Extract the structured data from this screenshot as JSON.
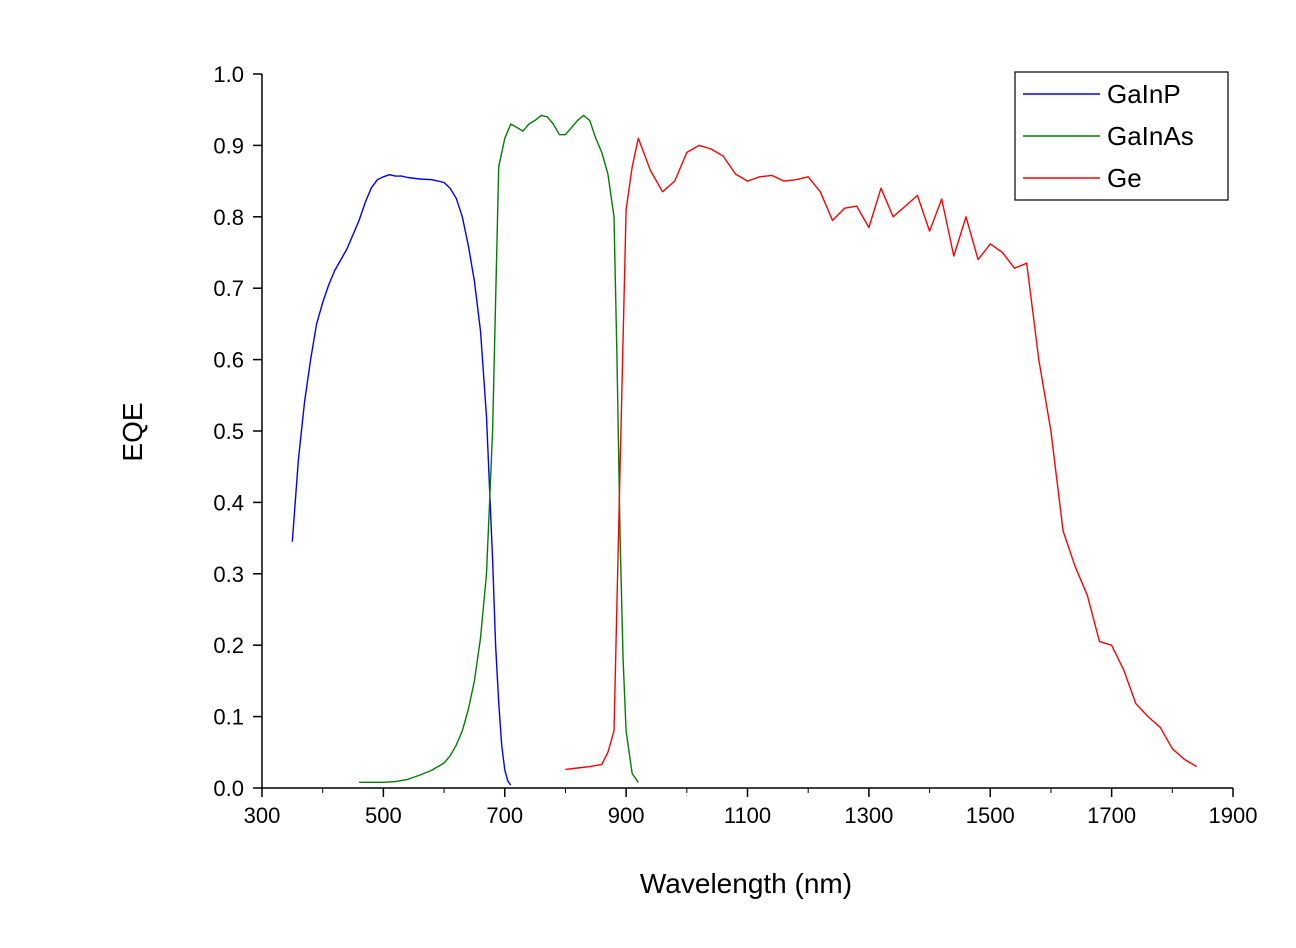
{
  "chart_data": {
    "type": "line",
    "title": "",
    "xlabel": "Wavelength (nm)",
    "ylabel": "EQE",
    "xlim": [
      300,
      1900
    ],
    "ylim": [
      0.0,
      1.0
    ],
    "xticks": [
      300,
      500,
      700,
      900,
      1100,
      1300,
      1500,
      1700,
      1900
    ],
    "xtick_labels": [
      "300",
      "500",
      "700",
      "900",
      "1100",
      "1300",
      "1500",
      "1700",
      "1900"
    ],
    "yticks": [
      0.0,
      0.1,
      0.2,
      0.3,
      0.4,
      0.5,
      0.6,
      0.7,
      0.8,
      0.9,
      1.0
    ],
    "ytick_labels": [
      "0.0",
      "0.1",
      "0.2",
      "0.3",
      "0.4",
      "0.5",
      "0.6",
      "0.7",
      "0.8",
      "0.9",
      "1.0"
    ],
    "grid": false,
    "legend_position": "top-right",
    "series": [
      {
        "name": "GaInP",
        "color": "#0000ff",
        "x": [
          350,
          360,
          370,
          380,
          390,
          400,
          410,
          420,
          430,
          440,
          450,
          460,
          470,
          480,
          490,
          500,
          510,
          520,
          530,
          540,
          560,
          580,
          600,
          610,
          620,
          630,
          640,
          650,
          660,
          670,
          680,
          685,
          690,
          695,
          700,
          705,
          710
        ],
        "y": [
          0.345,
          0.46,
          0.54,
          0.6,
          0.65,
          0.68,
          0.705,
          0.725,
          0.74,
          0.755,
          0.775,
          0.795,
          0.82,
          0.84,
          0.852,
          0.856,
          0.859,
          0.857,
          0.857,
          0.855,
          0.853,
          0.852,
          0.848,
          0.84,
          0.826,
          0.8,
          0.76,
          0.71,
          0.64,
          0.52,
          0.32,
          0.2,
          0.12,
          0.06,
          0.025,
          0.01,
          0.004
        ]
      },
      {
        "name": "GaInAs",
        "color": "#008000",
        "x": [
          460,
          480,
          500,
          520,
          540,
          560,
          580,
          600,
          610,
          620,
          630,
          640,
          650,
          660,
          670,
          680,
          690,
          700,
          710,
          720,
          730,
          740,
          750,
          760,
          770,
          780,
          790,
          800,
          810,
          820,
          830,
          840,
          850,
          860,
          870,
          880,
          885,
          890,
          895,
          900,
          910,
          920
        ],
        "y": [
          0.008,
          0.008,
          0.008,
          0.009,
          0.012,
          0.018,
          0.025,
          0.035,
          0.045,
          0.06,
          0.08,
          0.11,
          0.15,
          0.21,
          0.3,
          0.5,
          0.87,
          0.91,
          0.93,
          0.925,
          0.92,
          0.93,
          0.935,
          0.942,
          0.94,
          0.93,
          0.915,
          0.915,
          0.925,
          0.935,
          0.942,
          0.935,
          0.91,
          0.89,
          0.86,
          0.8,
          0.6,
          0.35,
          0.18,
          0.08,
          0.02,
          0.008
        ]
      },
      {
        "name": "Ge",
        "color": "#ff0000",
        "x": [
          800,
          820,
          840,
          860,
          870,
          880,
          890,
          900,
          910,
          920,
          940,
          960,
          980,
          1000,
          1020,
          1040,
          1060,
          1080,
          1100,
          1120,
          1140,
          1160,
          1180,
          1200,
          1220,
          1240,
          1260,
          1280,
          1300,
          1320,
          1340,
          1360,
          1380,
          1400,
          1420,
          1440,
          1460,
          1480,
          1500,
          1520,
          1540,
          1560,
          1580,
          1600,
          1620,
          1640,
          1660,
          1680,
          1700,
          1720,
          1740,
          1760,
          1780,
          1800,
          1820,
          1840
        ],
        "y": [
          0.026,
          0.028,
          0.03,
          0.033,
          0.05,
          0.08,
          0.45,
          0.81,
          0.87,
          0.91,
          0.865,
          0.835,
          0.85,
          0.89,
          0.9,
          0.895,
          0.885,
          0.86,
          0.85,
          0.856,
          0.858,
          0.85,
          0.852,
          0.856,
          0.835,
          0.795,
          0.812,
          0.815,
          0.785,
          0.84,
          0.8,
          0.815,
          0.83,
          0.78,
          0.825,
          0.745,
          0.8,
          0.74,
          0.762,
          0.75,
          0.728,
          0.735,
          0.6,
          0.5,
          0.36,
          0.31,
          0.27,
          0.205,
          0.2,
          0.165,
          0.118,
          0.1,
          0.085,
          0.055,
          0.04,
          0.03
        ]
      }
    ]
  }
}
